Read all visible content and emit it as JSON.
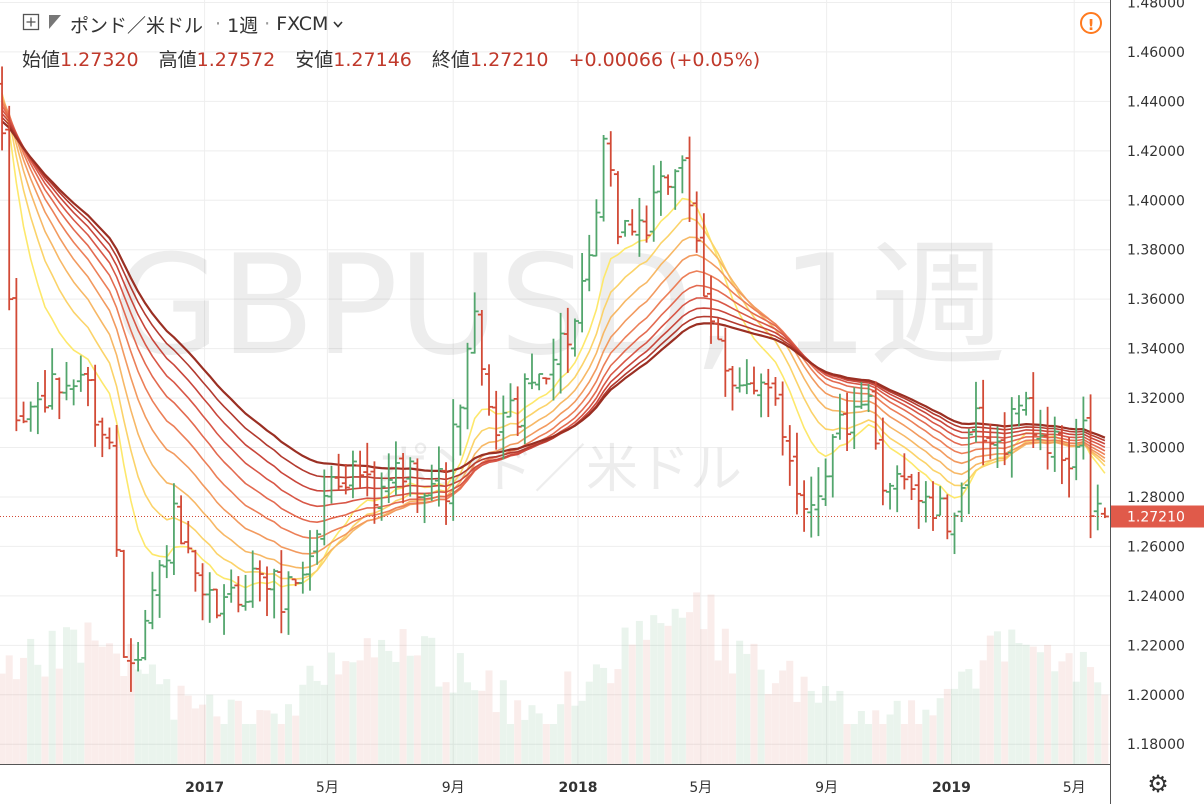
{
  "header": {
    "symbol": "ポンド／米ドル",
    "interval": "1週",
    "exchange": "FXCM",
    "ohlc": [
      {
        "label": "始値",
        "value": "1.27320"
      },
      {
        "label": "高値",
        "value": "1.27572"
      },
      {
        "label": "安値",
        "value": "1.27146"
      },
      {
        "label": "終値",
        "value": "1.27210"
      }
    ],
    "change": "+0.00066 (+0.05%)"
  },
  "watermark": {
    "main": "GBPUSD, 1週",
    "sub": "ポンド／米ドル"
  },
  "colors": {
    "up": "#53a66d",
    "down": "#d24a36",
    "price_line": "#d24a36",
    "price_label_bg": "#e05a4a",
    "warning": "#ff7a1f",
    "ribbon": [
      "#fde86b",
      "#fbd36a",
      "#f7b866",
      "#f29a5f",
      "#ec7f58",
      "#e36a50",
      "#d85747",
      "#c9463b",
      "#b33a2f",
      "#9a2f23"
    ]
  },
  "icons": {
    "add": "plus-square-icon",
    "flag": "flag-icon",
    "dropdown": "chevron-down-icon",
    "warning": "warning-icon",
    "settings": "gear-icon"
  },
  "chart_data": {
    "type": "candlestick",
    "title": "GBPUSD, 1週",
    "series_name": "ポンド／米ドル",
    "interval": "1週",
    "y_axis": {
      "position": "right",
      "range": [
        1.172,
        1.481
      ],
      "ticks": [
        "1.48000",
        "1.46000",
        "1.44000",
        "1.42000",
        "1.40000",
        "1.38000",
        "1.36000",
        "1.34000",
        "1.32000",
        "1.30000",
        "1.28000",
        "1.26000",
        "1.24000",
        "1.22000",
        "1.20000",
        "1.18000"
      ]
    },
    "x_axis": {
      "start": "2016-06-15",
      "end": "2019-06-05",
      "labels": [
        {
          "date": "2017-01-01",
          "text": "2017",
          "bold": true
        },
        {
          "date": "2017-05-01",
          "text": "5月",
          "bold": false
        },
        {
          "date": "2017-09-01",
          "text": "9月",
          "bold": false
        },
        {
          "date": "2018-01-01",
          "text": "2018",
          "bold": true
        },
        {
          "date": "2018-05-01",
          "text": "5月",
          "bold": false
        },
        {
          "date": "2018-09-01",
          "text": "9月",
          "bold": false
        },
        {
          "date": "2019-01-01",
          "text": "2019",
          "bold": true
        },
        {
          "date": "2019-05-01",
          "text": "5月",
          "bold": false
        }
      ]
    },
    "last_price": {
      "value": 1.2721,
      "label": "1.27210"
    },
    "anchors": [
      [
        "2016-06-17",
        1.42
      ],
      [
        "2016-06-24",
        1.36
      ],
      [
        "2016-07-01",
        1.31
      ],
      [
        "2016-07-29",
        1.32
      ],
      [
        "2016-09-02",
        1.33
      ],
      [
        "2016-09-30",
        1.3
      ],
      [
        "2016-10-14",
        1.22
      ],
      [
        "2016-10-28",
        1.22
      ],
      [
        "2016-12-02",
        1.27
      ],
      [
        "2016-12-30",
        1.235
      ],
      [
        "2017-01-20",
        1.235
      ],
      [
        "2017-02-24",
        1.25
      ],
      [
        "2017-03-17",
        1.24
      ],
      [
        "2017-04-14",
        1.255
      ],
      [
        "2017-05-05",
        1.29
      ],
      [
        "2017-06-02",
        1.29
      ],
      [
        "2017-06-16",
        1.275
      ],
      [
        "2017-07-07",
        1.29
      ],
      [
        "2017-08-25",
        1.285
      ],
      [
        "2017-09-08",
        1.32
      ],
      [
        "2017-09-22",
        1.35
      ],
      [
        "2017-10-06",
        1.31
      ],
      [
        "2017-11-03",
        1.315
      ],
      [
        "2017-12-01",
        1.335
      ],
      [
        "2017-12-29",
        1.35
      ],
      [
        "2018-01-12",
        1.37
      ],
      [
        "2018-01-26",
        1.42
      ],
      [
        "2018-02-09",
        1.39
      ],
      [
        "2018-03-09",
        1.39
      ],
      [
        "2018-04-13",
        1.42
      ],
      [
        "2018-04-20",
        1.4
      ],
      [
        "2018-05-04",
        1.355
      ],
      [
        "2018-05-25",
        1.335
      ],
      [
        "2018-06-22",
        1.32
      ],
      [
        "2018-07-13",
        1.32
      ],
      [
        "2018-08-10",
        1.275
      ],
      [
        "2018-08-24",
        1.285
      ],
      [
        "2018-09-14",
        1.31
      ],
      [
        "2018-09-28",
        1.31
      ],
      [
        "2018-10-12",
        1.315
      ],
      [
        "2018-10-26",
        1.28
      ],
      [
        "2018-11-09",
        1.295
      ],
      [
        "2018-12-07",
        1.275
      ],
      [
        "2018-12-28",
        1.27
      ],
      [
        "2019-01-11",
        1.285
      ],
      [
        "2019-01-25",
        1.31
      ],
      [
        "2019-02-08",
        1.295
      ],
      [
        "2019-02-22",
        1.305
      ],
      [
        "2019-03-08",
        1.32
      ],
      [
        "2019-03-29",
        1.305
      ],
      [
        "2019-04-26",
        1.295
      ],
      [
        "2019-05-10",
        1.305
      ],
      [
        "2019-05-17",
        1.275
      ],
      [
        "2019-05-31",
        1.2721
      ]
    ],
    "ribbon_periods": [
      10,
      15,
      20,
      25,
      30,
      35,
      40,
      45,
      50,
      55
    ]
  }
}
